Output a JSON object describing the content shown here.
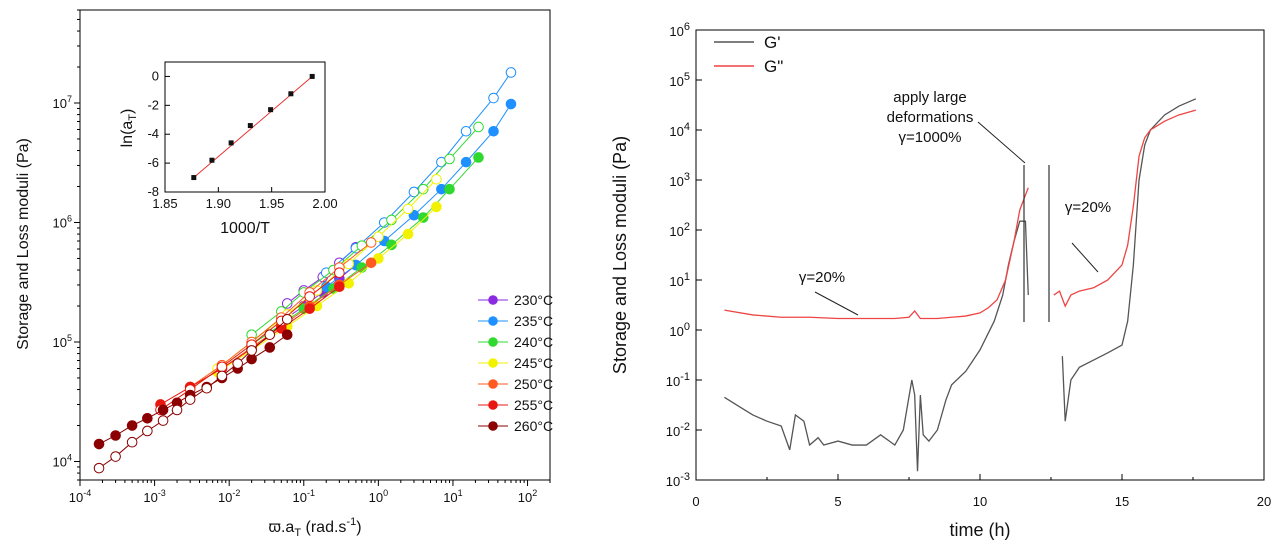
{
  "chart_data": [
    {
      "type": "scatter",
      "xlabel": "ϖ.a",
      "xlabel_sub": "T",
      "xlabel_unit_pre": " (rad.s",
      "xlabel_unit_sup": "-1",
      "xlabel_unit_post": ")",
      "ylabel": "Storage  and Loss  moduli (Pa)",
      "xscale": "log",
      "yscale": "log",
      "xlim": [
        0.0001,
        200
      ],
      "ylim": [
        7000,
        60000000
      ],
      "x_ticks": [
        "10",
        "10",
        "10",
        "10",
        "10",
        "10",
        "10"
      ],
      "x_tick_exps": [
        "-4",
        "-3",
        "-2",
        "-1",
        "0",
        "1",
        "2"
      ],
      "y_ticks": [
        "10",
        "10",
        "10",
        "10"
      ],
      "y_tick_exps": [
        "4",
        "5",
        "6",
        "7"
      ],
      "legend_position": "bottom-right",
      "series": [
        {
          "name": "230°C",
          "color": "#8a2be2",
          "x": [
            0.06,
            0.1,
            0.18,
            0.3,
            0.5
          ],
          "storage": [
            160000,
            200000,
            260000,
            340000,
            440000
          ],
          "loss": [
            210000,
            270000,
            350000,
            460000,
            620000
          ]
        },
        {
          "name": "235°C",
          "color": "#1e90ff",
          "x": [
            0.2,
            0.5,
            1.2,
            3,
            7,
            15,
            35,
            60
          ],
          "storage": [
            290000,
            440000,
            700000,
            1150000,
            1900000,
            3200000,
            5800000,
            9800000
          ],
          "loss": [
            380000,
            610000,
            1000000,
            1800000,
            3200000,
            5800000,
            11000000,
            18000000
          ]
        },
        {
          "name": "240°C",
          "color": "#2fd92f",
          "x": [
            0.02,
            0.05,
            0.1,
            0.25,
            0.6,
            1.5,
            4,
            9,
            22
          ],
          "storage": [
            95000,
            140000,
            190000,
            280000,
            420000,
            650000,
            1100000,
            1900000,
            3500000
          ],
          "loss": [
            115000,
            180000,
            260000,
            400000,
            640000,
            1050000,
            1900000,
            3400000,
            6300000
          ]
        },
        {
          "name": "245°C",
          "color": "#f2f200",
          "x": [
            0.007,
            0.02,
            0.06,
            0.15,
            0.4,
            1,
            2.5,
            6
          ],
          "storage": [
            56000,
            85000,
            135000,
            200000,
            310000,
            500000,
            800000,
            1350000
          ],
          "loss": [
            60000,
            100000,
            170000,
            270000,
            450000,
            760000,
            1300000,
            2300000
          ]
        },
        {
          "name": "250°C",
          "color": "#ff5a1f",
          "x": [
            0.003,
            0.008,
            0.02,
            0.05,
            0.12,
            0.3,
            0.8
          ],
          "storage": [
            42000,
            60000,
            90000,
            135000,
            200000,
            300000,
            460000
          ],
          "loss": [
            42000,
            64000,
            100000,
            160000,
            260000,
            420000,
            680000
          ]
        },
        {
          "name": "255°C",
          "color": "#e8170f",
          "x": [
            0.0012,
            0.003,
            0.008,
            0.02,
            0.05,
            0.12,
            0.3
          ],
          "storage": [
            30000,
            42000,
            60000,
            88000,
            130000,
            190000,
            290000
          ],
          "loss": [
            27000,
            40000,
            62000,
            95000,
            150000,
            240000,
            380000
          ]
        },
        {
          "name": "260°C",
          "color": "#8b0000",
          "x": [
            0.00018,
            0.0003,
            0.0005,
            0.0008,
            0.0013,
            0.002,
            0.003,
            0.005,
            0.008,
            0.013,
            0.02,
            0.035,
            0.06
          ],
          "storage": [
            14000,
            16500,
            20000,
            23000,
            27000,
            31000,
            36000,
            42000,
            50000,
            60000,
            72000,
            90000,
            115000
          ],
          "loss": [
            8800,
            11000,
            14500,
            18000,
            22000,
            27000,
            33000,
            41000,
            52000,
            66000,
            85000,
            115000,
            155000
          ]
        }
      ],
      "inset": {
        "type": "line",
        "xlabel": "1000/T",
        "ylabel": "ln(a",
        "ylabel_sub": "T",
        "ylabel_post": ")",
        "xlim": [
          1.85,
          2.0
        ],
        "ylim": [
          -8,
          1
        ],
        "x_ticks": [
          "1.85",
          "1.90",
          "1.95",
          "2.00"
        ],
        "y_ticks": [
          "0",
          "-2",
          "-4",
          "-6",
          "-8"
        ],
        "x": [
          1.877,
          1.894,
          1.912,
          1.93,
          1.949,
          1.968,
          1.988
        ],
        "y": [
          -7.0,
          -5.8,
          -4.6,
          -3.4,
          -2.3,
          -1.2,
          0.0
        ]
      }
    },
    {
      "type": "line",
      "xlabel": "time (h)",
      "ylabel": "Storage and Loss moduli (Pa)",
      "yscale": "log",
      "xlim": [
        0,
        20
      ],
      "ylim": [
        0.001,
        1000000
      ],
      "x_ticks": [
        "0",
        "5",
        "10",
        "15",
        "20"
      ],
      "y_ticks": [
        "10",
        "10",
        "10",
        "10",
        "10",
        "10",
        "10",
        "10",
        "10",
        "10"
      ],
      "y_tick_exps": [
        "-3",
        "-2",
        "-1",
        "0",
        "1",
        "2",
        "3",
        "4",
        "5",
        "6"
      ],
      "legend_position": "top-left",
      "series": [
        {
          "name": "G'",
          "color": "#555555",
          "x": [
            1.0,
            1.5,
            2.0,
            2.5,
            3.0,
            3.3,
            3.5,
            3.8,
            4.0,
            4.3,
            4.5,
            5.0,
            5.5,
            6.0,
            6.5,
            7.0,
            7.3,
            7.6,
            7.7,
            7.8,
            7.9,
            8.0,
            8.2,
            8.5,
            8.8,
            9.0,
            9.5,
            10.0,
            10.5,
            10.8,
            11.0,
            11.2,
            11.4,
            11.6,
            11.7
          ],
          "y": [
            0.045,
            0.03,
            0.02,
            0.015,
            0.012,
            0.004,
            0.02,
            0.015,
            0.005,
            0.007,
            0.005,
            0.006,
            0.005,
            0.005,
            0.008,
            0.005,
            0.01,
            0.1,
            0.05,
            0.0015,
            0.05,
            0.008,
            0.006,
            0.01,
            0.04,
            0.08,
            0.15,
            0.4,
            1.5,
            5,
            20,
            60,
            150,
            150,
            5
          ],
          "x2": [
            12.9,
            13.0,
            13.2,
            13.5,
            14.0,
            14.5,
            15.0,
            15.2,
            15.4,
            15.6,
            15.8,
            16.0,
            16.5,
            17.0,
            17.6
          ],
          "y2": [
            0.3,
            0.015,
            0.1,
            0.18,
            0.25,
            0.35,
            0.5,
            1.5,
            20,
            1000,
            5000,
            10000,
            20000,
            30000,
            42000
          ]
        },
        {
          "name": "G\"",
          "color": "#ee4444",
          "x": [
            1.0,
            2.0,
            3.0,
            4.0,
            5.0,
            6.0,
            7.0,
            7.5,
            7.7,
            7.9,
            8.5,
            9.0,
            9.5,
            10.0,
            10.3,
            10.6,
            10.9,
            11.2,
            11.4,
            11.6,
            11.7
          ],
          "y": [
            2.5,
            2.0,
            1.8,
            1.8,
            1.7,
            1.7,
            1.7,
            1.8,
            2.4,
            1.7,
            1.7,
            1.8,
            1.9,
            2.2,
            2.8,
            4,
            10,
            60,
            250,
            500,
            700
          ],
          "x2": [
            12.6,
            12.8,
            13.0,
            13.2,
            13.5,
            14.0,
            14.5,
            15.0,
            15.2,
            15.4,
            15.6,
            15.8,
            16.0,
            16.5,
            17.0,
            17.6
          ],
          "y2": [
            5,
            6,
            3,
            5,
            6,
            7,
            10,
            20,
            50,
            300,
            3000,
            7000,
            10000,
            15000,
            20000,
            25000
          ]
        }
      ],
      "annotations": [
        {
          "line1": "apply large",
          "line2": "deformations",
          "line3": "γ=1000%"
        },
        {
          "text": "γ=20%"
        },
        {
          "text": "γ=20%"
        }
      ]
    }
  ]
}
